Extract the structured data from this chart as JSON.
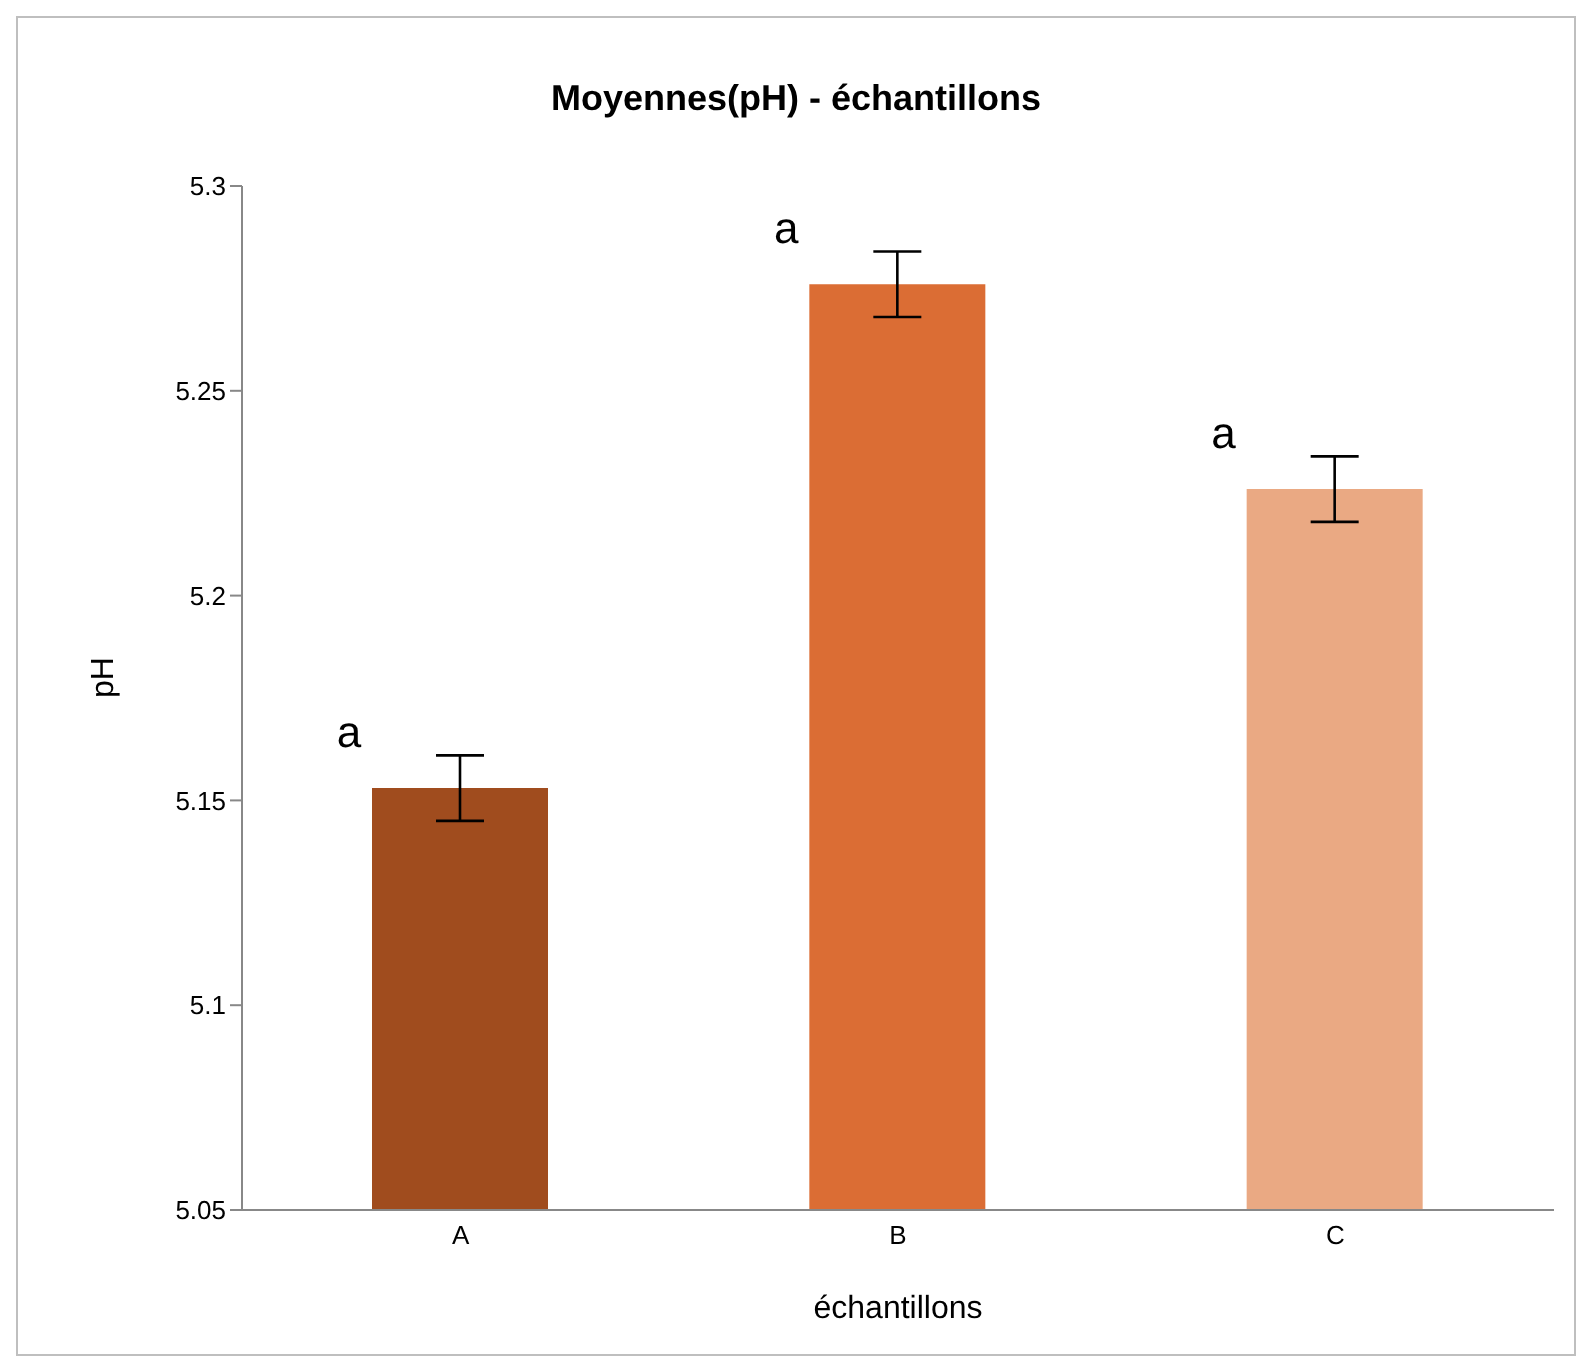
{
  "chart_data": {
    "type": "bar",
    "title": "Moyennes(pH) - échantillons",
    "xlabel": "échantillons",
    "ylabel": "pH",
    "categories": [
      "A",
      "B",
      "C"
    ],
    "values": [
      5.153,
      5.276,
      5.226
    ],
    "colors": [
      "#a04c1e",
      "#db6d34",
      "#eaa983"
    ],
    "errors": [
      0.008,
      0.008,
      0.008
    ],
    "ylim": [
      5.05,
      5.3
    ],
    "yticks": [
      5.05,
      5.1,
      5.15,
      5.2,
      5.25,
      5.3
    ],
    "annotations": [
      {
        "text": "a",
        "x": "A",
        "y": 5.162
      },
      {
        "text": "a",
        "x": "B",
        "y": 5.285
      },
      {
        "text": "a",
        "x": "C",
        "y": 5.235
      }
    ]
  }
}
